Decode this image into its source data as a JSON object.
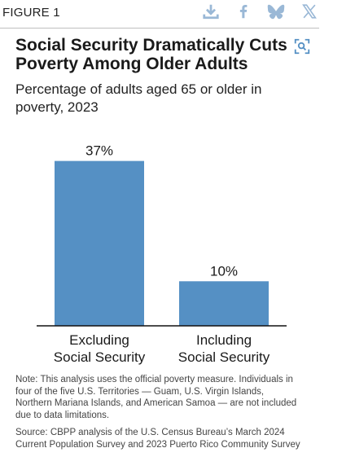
{
  "header": {
    "figure_label": "FIGURE 1",
    "icons": [
      "download-icon",
      "facebook-icon",
      "bluesky-icon",
      "x-twitter-icon"
    ],
    "icon_color": "#9ab8d6"
  },
  "title": "Social Security Dramatically Cuts Poverty Among Older Adults",
  "zoom_icon": "expand-icon",
  "subtitle": "Percentage of adults aged 65 or older in poverty, 2023",
  "chart_data": {
    "type": "bar",
    "categories": [
      [
        "Excluding",
        "Social Security"
      ],
      [
        "Including",
        "Social Security"
      ]
    ],
    "values": [
      37,
      10
    ],
    "value_labels": [
      "37%",
      "10%"
    ],
    "ylim": [
      0,
      40
    ],
    "bar_color": "#5590c4",
    "grid": false,
    "legend": "none"
  },
  "notes": {
    "note": "Note: This analysis uses the official poverty measure. Individuals in four of the five U.S. Territories — Guam, U.S. Virgin Islands, Northern Mariana Islands, and American Samoa — are not included due to data limitations.",
    "source": "Source: CBPP analysis of the U.S. Census Bureau’s March 2024 Current Population Survey and 2023 Puerto Rico Community Survey"
  }
}
